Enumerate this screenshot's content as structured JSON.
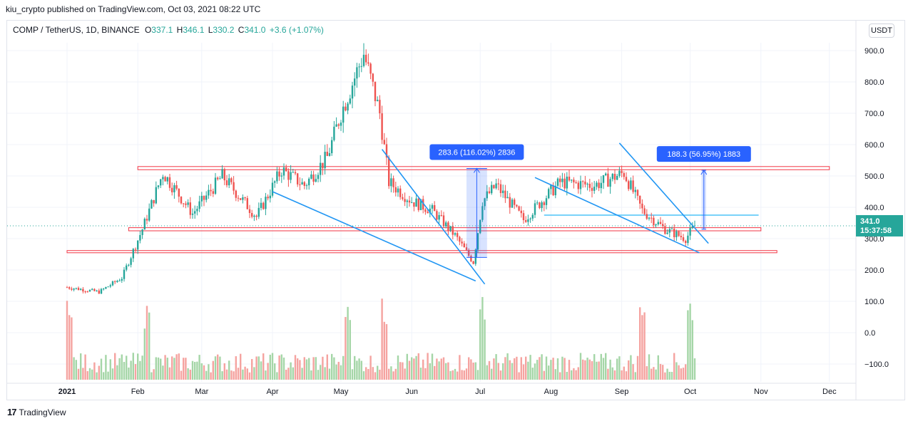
{
  "publisher_line": "kiu_crypto published on TradingView.com, Oct 03, 2021 08:22 UTC",
  "legend": {
    "symbol": "COMP / TetherUS, 1D, BINANCE",
    "o_label": "O",
    "o_value": "337.1",
    "h_label": "H",
    "h_value": "346.1",
    "l_label": "L",
    "l_value": "330.2",
    "c_label": "C",
    "c_value": "341.0",
    "change": "+3.6 (+1.07%)"
  },
  "currency_button": "USDT",
  "price_label": {
    "price": "341.0",
    "countdown": "15:37:58"
  },
  "brand": "TradingView",
  "colors": {
    "up": "#26a69a",
    "down": "#ef5350",
    "trendline": "#2196f3",
    "zone": "#f23645",
    "measure": "#2962ff",
    "price_tag": "#26a69a"
  },
  "chart_data": {
    "type": "candlestick",
    "symbol": "COMP / TetherUS",
    "interval": "1D",
    "exchange": "BINANCE",
    "y_axis": {
      "ticks": [
        900,
        800,
        700,
        600,
        500,
        400,
        300,
        200,
        100,
        0,
        -100
      ],
      "labels": [
        "900.0",
        "800.0",
        "700.0",
        "600.0",
        "500.0",
        "400.0",
        "300.0",
        "200.0",
        "100.0",
        "0.0",
        "−100.0"
      ]
    },
    "x_axis": {
      "labels": [
        "2021",
        "Feb",
        "Mar",
        "Apr",
        "May",
        "Jun",
        "Jul",
        "Aug",
        "Sep",
        "Oct",
        "Nov",
        "Dec"
      ]
    },
    "last_price": 341.0,
    "monthly_path": [
      {
        "date": "2021-01-01",
        "price": 145
      },
      {
        "date": "2021-01-15",
        "price": 130
      },
      {
        "date": "2021-01-25",
        "price": 175
      },
      {
        "date": "2021-02-03",
        "price": 330
      },
      {
        "date": "2021-02-12",
        "price": 510
      },
      {
        "date": "2021-02-25",
        "price": 380
      },
      {
        "date": "2021-03-10",
        "price": 500
      },
      {
        "date": "2021-03-25",
        "price": 370
      },
      {
        "date": "2021-04-05",
        "price": 520
      },
      {
        "date": "2021-04-15",
        "price": 470
      },
      {
        "date": "2021-04-25",
        "price": 560
      },
      {
        "date": "2021-05-01",
        "price": 700
      },
      {
        "date": "2021-05-11",
        "price": 890
      },
      {
        "date": "2021-05-18",
        "price": 700
      },
      {
        "date": "2021-05-22",
        "price": 480
      },
      {
        "date": "2021-06-01",
        "price": 420
      },
      {
        "date": "2021-06-10",
        "price": 390
      },
      {
        "date": "2021-06-20",
        "price": 310
      },
      {
        "date": "2021-06-28",
        "price": 225
      },
      {
        "date": "2021-07-02",
        "price": 420
      },
      {
        "date": "2021-07-08",
        "price": 470
      },
      {
        "date": "2021-07-20",
        "price": 360
      },
      {
        "date": "2021-08-05",
        "price": 480
      },
      {
        "date": "2021-08-20",
        "price": 470
      },
      {
        "date": "2021-09-02",
        "price": 510
      },
      {
        "date": "2021-09-10",
        "price": 390
      },
      {
        "date": "2021-09-20",
        "price": 330
      },
      {
        "date": "2021-09-29",
        "price": 300
      },
      {
        "date": "2021-10-03",
        "price": 341
      }
    ],
    "volume": {
      "spike_dates": [
        "2021-01-02",
        "2021-02-05",
        "2021-05-04",
        "2021-05-20",
        "2021-07-02",
        "2021-09-10",
        "2021-10-01"
      ]
    },
    "horizontal_zones": [
      {
        "start": "2021-02-01",
        "end": "2021-12-01",
        "low": 520,
        "high": 530
      },
      {
        "start": "2021-01-28",
        "end": "2021-11-01",
        "low": 325,
        "high": 335
      },
      {
        "start": "2021-01-01",
        "end": "2021-11-08",
        "low": 255,
        "high": 262
      }
    ],
    "horizontal_lines": [
      {
        "start": "2021-07-29",
        "end": "2021-10-31",
        "price": 375
      }
    ],
    "trendlines": [
      {
        "from": {
          "date": "2021-04-01",
          "price": 450
        },
        "to": {
          "date": "2021-06-29",
          "price": 165
        }
      },
      {
        "from": {
          "date": "2021-05-19",
          "price": 585
        },
        "to": {
          "date": "2021-07-03",
          "price": 155
        }
      },
      {
        "from": {
          "date": "2021-07-25",
          "price": 495
        },
        "to": {
          "date": "2021-10-05",
          "price": 255
        }
      },
      {
        "from": {
          "date": "2021-08-31",
          "price": 605
        },
        "to": {
          "date": "2021-10-09",
          "price": 285
        }
      }
    ],
    "measurements": [
      {
        "start": "2021-06-25",
        "end": "2021-07-04",
        "from_price": 240,
        "to_price": 524,
        "label": "283.6 (116.02%) 2836"
      },
      {
        "start": "2021-10-06",
        "end": "2021-10-08",
        "from_price": 330,
        "to_price": 518,
        "label": "188.3 (56.95%) 1883"
      }
    ]
  }
}
